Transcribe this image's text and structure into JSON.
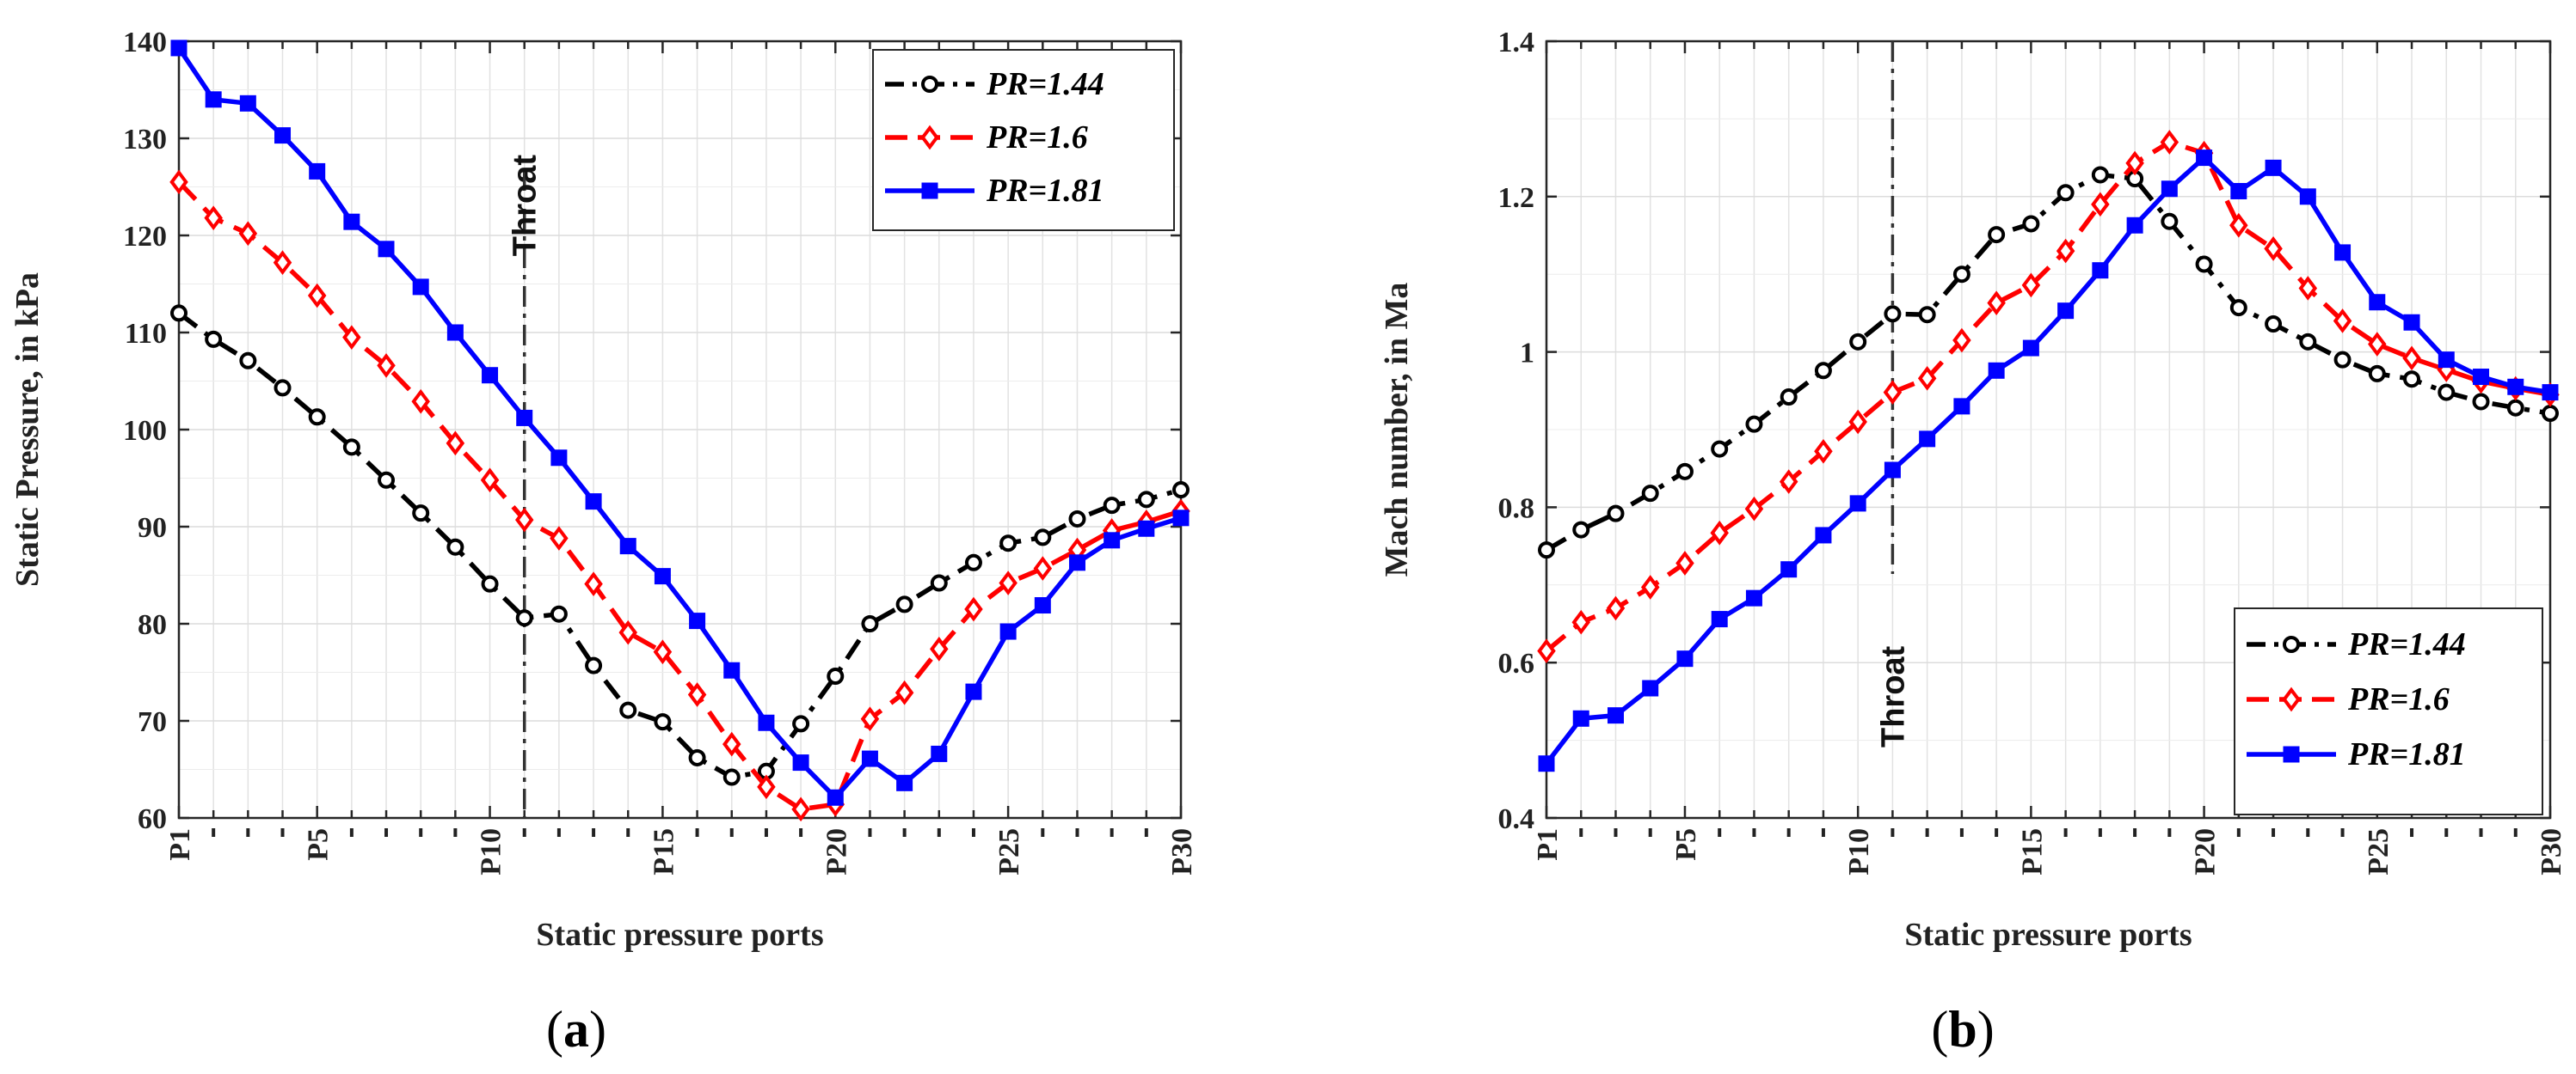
{
  "chart_data": [
    {
      "type": "line",
      "panel_label": "(a)",
      "panel_letter": "a",
      "xlabel": "Static pressure ports",
      "ylabel": "Static Pressure, in kPa",
      "ylim": [
        60,
        140
      ],
      "yticks": [
        60,
        70,
        80,
        90,
        100,
        110,
        120,
        130,
        140
      ],
      "x": [
        1,
        2,
        3,
        4,
        5,
        6,
        7,
        8,
        9,
        10,
        11,
        12,
        13,
        14,
        15,
        16,
        17,
        18,
        19,
        20,
        21,
        22,
        23,
        24,
        25,
        26,
        27,
        28,
        29,
        30
      ],
      "xticks": [
        {
          "x": 1,
          "label": "P1"
        },
        {
          "x": 5,
          "label": "P5"
        },
        {
          "x": 10,
          "label": "P10"
        },
        {
          "x": 15,
          "label": "P15"
        },
        {
          "x": 20,
          "label": "P20"
        },
        {
          "x": 25,
          "label": "P25"
        },
        {
          "x": 30,
          "label": "P30"
        }
      ],
      "grid": true,
      "legend_position": "top-right",
      "throat": {
        "x": 11,
        "label": "Throat"
      },
      "series": [
        {
          "name": "PR=1.44",
          "color": "#000000",
          "marker": "circle",
          "dash": "dash-dot",
          "values": [
            112,
            109.3,
            107.1,
            104.3,
            101.3,
            98.2,
            94.8,
            91.4,
            87.9,
            84.1,
            80.6,
            81,
            75.7,
            71.1,
            69.9,
            66.2,
            64.2,
            64.8,
            69.7,
            74.6,
            80,
            82,
            84.2,
            86.3,
            88.3,
            88.9,
            90.8,
            92.2,
            92.8,
            93.8
          ]
        },
        {
          "name": "PR=1.6",
          "color": "#ff0000",
          "marker": "diamond",
          "dash": "dash",
          "values": [
            125.5,
            121.8,
            120.2,
            117.2,
            113.8,
            109.5,
            106.6,
            102.9,
            98.6,
            94.8,
            90.7,
            88.8,
            84.1,
            79.1,
            77.1,
            72.7,
            67.6,
            63.2,
            60.9,
            61.4,
            70.2,
            72.9,
            77.4,
            81.5,
            84.2,
            85.7,
            87.6,
            89.6,
            90.5,
            91.6
          ]
        },
        {
          "name": "PR=1.81",
          "color": "#0000ff",
          "marker": "square",
          "dash": "solid",
          "values": [
            139.3,
            134,
            133.6,
            130.3,
            126.6,
            121.4,
            118.6,
            114.7,
            110,
            105.6,
            101.2,
            97.1,
            92.6,
            88,
            84.9,
            80.3,
            75.2,
            69.8,
            65.7,
            62.1,
            66.1,
            63.6,
            66.6,
            73,
            79.2,
            81.9,
            86.3,
            88.6,
            89.8,
            90.9
          ]
        }
      ]
    },
    {
      "type": "line",
      "panel_label": "(b)",
      "panel_letter": "b",
      "xlabel": "Static pressure ports",
      "ylabel": "Mach number, in Ma",
      "ylim": [
        0.4,
        1.4
      ],
      "yticks": [
        0.4,
        0.6,
        0.8,
        1,
        1.2,
        1.4
      ],
      "x": [
        1,
        2,
        3,
        4,
        5,
        6,
        7,
        8,
        9,
        10,
        11,
        12,
        13,
        14,
        15,
        16,
        17,
        18,
        19,
        20,
        21,
        22,
        23,
        24,
        25,
        26,
        27,
        28,
        29,
        30
      ],
      "xticks": [
        {
          "x": 1,
          "label": "P1"
        },
        {
          "x": 5,
          "label": "P5"
        },
        {
          "x": 10,
          "label": "P10"
        },
        {
          "x": 15,
          "label": "P15"
        },
        {
          "x": 20,
          "label": "P20"
        },
        {
          "x": 25,
          "label": "P25"
        },
        {
          "x": 30,
          "label": "P30"
        }
      ],
      "grid": true,
      "legend_position": "bottom-right",
      "throat": {
        "x": 11,
        "label": "Throat"
      },
      "series": [
        {
          "name": "PR=1.44",
          "color": "#000000",
          "marker": "circle",
          "dash": "dash-dot",
          "values": [
            0.745,
            0.771,
            0.792,
            0.818,
            0.846,
            0.875,
            0.907,
            0.942,
            0.976,
            1.013,
            1.049,
            1.048,
            1.1,
            1.151,
            1.165,
            1.205,
            1.228,
            1.223,
            1.168,
            1.113,
            1.057,
            1.036,
            1.013,
            0.99,
            0.972,
            0.965,
            0.948,
            0.936,
            0.928,
            0.921
          ]
        },
        {
          "name": "PR=1.6",
          "color": "#ff0000",
          "marker": "diamond",
          "dash": "dash",
          "values": [
            0.615,
            0.652,
            0.67,
            0.697,
            0.728,
            0.767,
            0.798,
            0.833,
            0.872,
            0.91,
            0.948,
            0.966,
            1.015,
            1.063,
            1.086,
            1.13,
            1.19,
            1.243,
            1.27,
            1.256,
            1.163,
            1.133,
            1.082,
            1.04,
            1.01,
            0.992,
            0.977,
            0.962,
            0.953,
            0.945
          ]
        },
        {
          "name": "PR=1.81",
          "color": "#0000ff",
          "marker": "square",
          "dash": "solid",
          "values": [
            0.47,
            0.528,
            0.532,
            0.567,
            0.605,
            0.656,
            0.683,
            0.72,
            0.764,
            0.805,
            0.848,
            0.888,
            0.93,
            0.976,
            1.005,
            1.053,
            1.105,
            1.163,
            1.21,
            1.25,
            1.207,
            1.237,
            1.2,
            1.128,
            1.064,
            1.038,
            0.99,
            0.968,
            0.955,
            0.948
          ]
        }
      ]
    }
  ]
}
